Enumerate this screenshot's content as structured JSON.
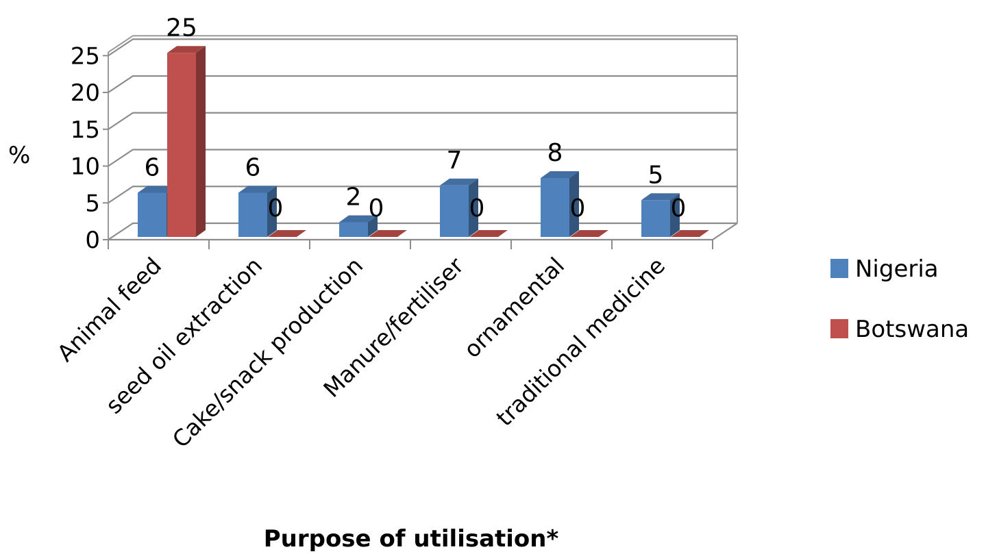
{
  "chart_data": {
    "type": "bar",
    "categories": [
      "Animal feed",
      "seed oil extraction",
      "Cake/snack production",
      "Manure/fertiliser",
      "ornamental",
      "traditional medicine"
    ],
    "series": [
      {
        "name": "Nigeria",
        "values": [
          6,
          6,
          2,
          7,
          8,
          5
        ],
        "color": "#4F81BD"
      },
      {
        "name": "Botswana",
        "values": [
          25,
          0,
          0,
          0,
          0,
          0
        ],
        "color": "#C0504D"
      }
    ],
    "xlabel": "Purpose of utilisation*",
    "ylabel": "%",
    "ylim": [
      0,
      25
    ],
    "yticks": [
      "0",
      "5",
      "10",
      "15",
      "20",
      "25"
    ],
    "grid": true,
    "legend_position": "right",
    "data_labels": true,
    "style": "3d-column"
  }
}
